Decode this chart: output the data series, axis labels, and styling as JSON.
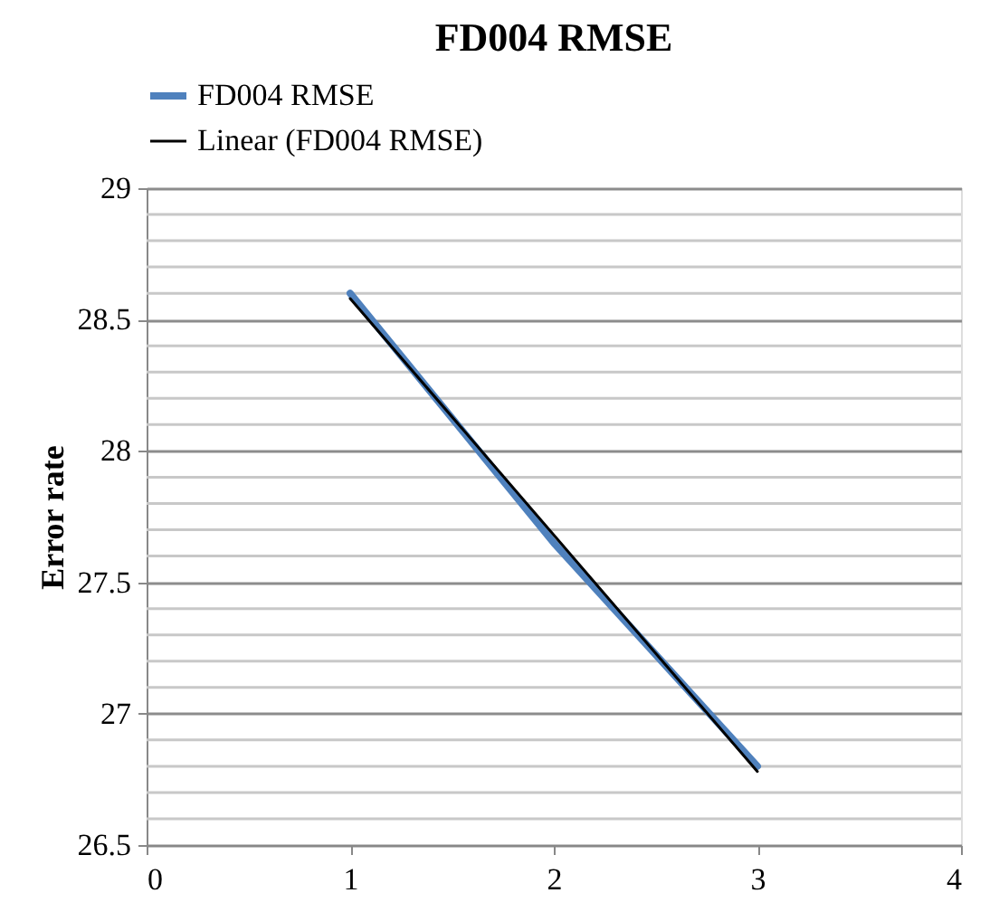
{
  "chart_data": {
    "type": "line",
    "title": "FD004 RMSE",
    "ylabel": "Error rate",
    "x": [
      1,
      2,
      3
    ],
    "series": [
      {
        "name": "FD004 RMSE",
        "color": "#4f81bd",
        "values": [
          28.6,
          27.65,
          26.8
        ]
      },
      {
        "name": "Linear (FD004 RMSE)",
        "color": "#000000",
        "type": "line",
        "x": [
          1,
          3
        ],
        "values": [
          28.58,
          26.78
        ]
      }
    ],
    "xlim": [
      0,
      4
    ],
    "xticks": [
      0,
      1,
      2,
      3,
      4
    ],
    "ylim": [
      26.5,
      29
    ],
    "yticks": [
      26.5,
      {
        "value": 26.6,
        "label": null
      },
      {
        "value": 26.7,
        "label": null
      },
      {
        "value": 26.8,
        "label": null
      },
      {
        "value": 26.9,
        "label": null
      },
      27,
      {
        "value": 27.1,
        "label": null
      },
      {
        "value": 27.2,
        "label": null
      },
      {
        "value": 27.3,
        "label": null
      },
      {
        "value": 27.4,
        "label": null
      },
      27.5,
      {
        "value": 27.6,
        "label": null
      },
      {
        "value": 27.7,
        "label": null
      },
      {
        "value": 27.8,
        "label": null
      },
      {
        "value": 27.9,
        "label": null
      },
      28,
      {
        "value": 28.1,
        "label": null
      },
      {
        "value": 28.2,
        "label": null
      },
      {
        "value": 28.3,
        "label": null
      },
      {
        "value": 28.4,
        "label": null
      },
      28.5,
      {
        "value": 28.6,
        "label": null
      },
      {
        "value": 28.7,
        "label": null
      },
      {
        "value": 28.8,
        "label": null
      },
      {
        "value": 28.9,
        "label": null
      },
      29
    ],
    "grid": "y",
    "legend": "top",
    "marker": "none",
    "line_style": "solid"
  }
}
